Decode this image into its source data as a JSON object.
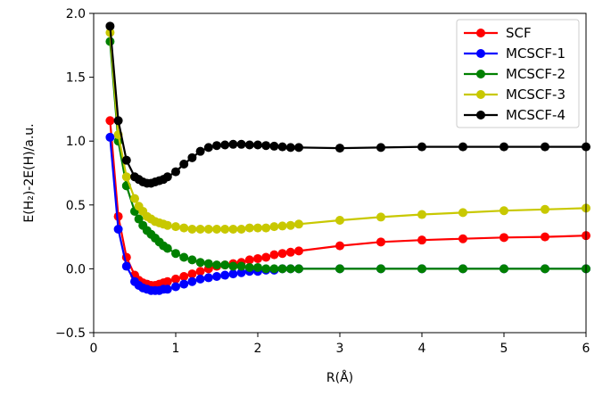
{
  "chart_data": {
    "type": "line",
    "title": "",
    "xlabel": "R(Å)",
    "ylabel": "E(H₂)-2E(H)/a.u.",
    "xlim": [
      0,
      6
    ],
    "ylim": [
      -0.5,
      2.0
    ],
    "xticks": [
      "0",
      "1",
      "2",
      "3",
      "4",
      "5",
      "6"
    ],
    "yticks": [
      "−0.5",
      "0.0",
      "0.5",
      "1.0",
      "1.5",
      "2.0"
    ],
    "grid": false,
    "legend_position": "top-right",
    "x": [
      0.2,
      0.3,
      0.4,
      0.5,
      0.55,
      0.6,
      0.65,
      0.7,
      0.75,
      0.8,
      0.85,
      0.9,
      1.0,
      1.1,
      1.2,
      1.3,
      1.4,
      1.5,
      1.6,
      1.7,
      1.8,
      1.9,
      2.0,
      2.1,
      2.2,
      2.3,
      2.4,
      2.5,
      3.0,
      3.5,
      4.0,
      4.5,
      5.0,
      5.5,
      6.0
    ],
    "series": [
      {
        "name": "SCF",
        "color": "#ff0000",
        "values": [
          1.16,
          0.41,
          0.09,
          -0.05,
          -0.09,
          -0.11,
          -0.12,
          -0.13,
          -0.13,
          -0.12,
          -0.11,
          -0.1,
          -0.08,
          -0.06,
          -0.04,
          -0.02,
          0.0,
          0.02,
          0.03,
          0.04,
          0.05,
          0.07,
          0.08,
          0.09,
          0.11,
          0.12,
          0.13,
          0.14,
          0.18,
          0.21,
          0.225,
          0.235,
          0.245,
          0.25,
          0.26
        ]
      },
      {
        "name": "MCSCF-1",
        "color": "#0000ff",
        "values": [
          1.03,
          0.31,
          0.02,
          -0.1,
          -0.13,
          -0.15,
          -0.16,
          -0.17,
          -0.17,
          -0.17,
          -0.16,
          -0.16,
          -0.14,
          -0.12,
          -0.1,
          -0.08,
          -0.07,
          -0.06,
          -0.05,
          -0.04,
          -0.03,
          -0.02,
          -0.02,
          -0.01,
          -0.01,
          0.0,
          0.0,
          0.0,
          0.0,
          0.0,
          0.0,
          0.0,
          0.0,
          0.0,
          0.0
        ]
      },
      {
        "name": "MCSCF-2",
        "color": "#008000",
        "values": [
          1.78,
          1.0,
          0.65,
          0.45,
          0.39,
          0.34,
          0.3,
          0.27,
          0.24,
          0.21,
          0.18,
          0.16,
          0.12,
          0.09,
          0.07,
          0.05,
          0.04,
          0.03,
          0.03,
          0.02,
          0.02,
          0.01,
          0.01,
          0.0,
          0.0,
          0.0,
          0.0,
          0.0,
          0.0,
          0.0,
          0.0,
          0.0,
          0.0,
          0.0,
          0.0
        ]
      },
      {
        "name": "MCSCF-3",
        "color": "#c8c800",
        "values": [
          1.85,
          1.05,
          0.72,
          0.55,
          0.49,
          0.45,
          0.41,
          0.39,
          0.37,
          0.36,
          0.35,
          0.34,
          0.33,
          0.32,
          0.31,
          0.31,
          0.31,
          0.31,
          0.31,
          0.31,
          0.31,
          0.32,
          0.32,
          0.32,
          0.33,
          0.335,
          0.34,
          0.35,
          0.38,
          0.405,
          0.425,
          0.44,
          0.455,
          0.465,
          0.475
        ]
      },
      {
        "name": "MCSCF-4",
        "color": "#000000",
        "values": [
          1.9,
          1.16,
          0.85,
          0.72,
          0.7,
          0.68,
          0.67,
          0.67,
          0.68,
          0.69,
          0.7,
          0.72,
          0.76,
          0.82,
          0.87,
          0.92,
          0.95,
          0.965,
          0.97,
          0.975,
          0.975,
          0.97,
          0.97,
          0.965,
          0.96,
          0.955,
          0.95,
          0.95,
          0.945,
          0.95,
          0.955,
          0.955,
          0.955,
          0.955,
          0.955
        ]
      }
    ]
  }
}
